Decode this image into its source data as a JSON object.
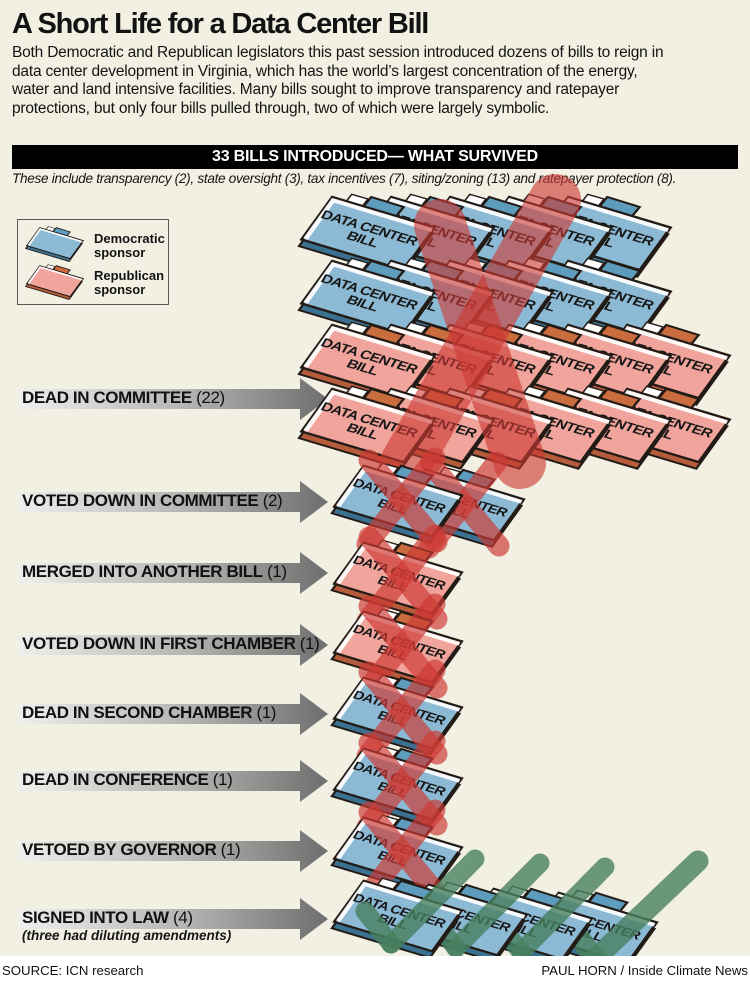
{
  "title": "A Short Life for a Data Center Bill",
  "intro": "Both Democratic and Republican legislators this past session introduced dozens of bills to reign in data center development in Virginia, which has the world’s largest concentration of the energy, water and land intensive facilities. Many bills sought to improve transparency and ratepayer protections, but only four bills pulled through, two of which were largely symbolic.",
  "banner": "33 BILLS INTRODUCED— WHAT SURVIVED",
  "subtitle": "These include transparency (2), state oversight (3), tax incentives (7), siting/zoning (13) and ratepayer protection (8).",
  "legend": {
    "dem_label": "Democratic sponsor",
    "rep_label": "Republican sponsor"
  },
  "folder": {
    "line1": "DATA CENTER",
    "line2": "BILL",
    "full_label": "DATA CENTER BILL"
  },
  "categories": [
    {
      "id": "dead_in_committee",
      "label": "DEAD IN COMMITTEE",
      "count": 22,
      "outcome": "x",
      "rows": [
        {
          "party": "dem",
          "n": 5
        },
        {
          "party": "dem",
          "n": 5
        },
        {
          "party": "rep",
          "n": 6
        },
        {
          "party": "rep",
          "n": 6
        }
      ]
    },
    {
      "id": "voted_down_in_committee",
      "label": "VOTED DOWN IN COMMITTEE",
      "count": 2,
      "outcome": "x",
      "rows": [
        {
          "party": "dem",
          "n": 2
        }
      ]
    },
    {
      "id": "merged_into_another_bill",
      "label": "MERGED INTO ANOTHER BILL",
      "count": 1,
      "outcome": "x",
      "rows": [
        {
          "party": "rep",
          "n": 1
        }
      ]
    },
    {
      "id": "voted_down_in_first_chamber",
      "label": "VOTED DOWN IN FIRST CHAMBER",
      "count": 1,
      "outcome": "x",
      "rows": [
        {
          "party": "rep",
          "n": 1
        }
      ]
    },
    {
      "id": "dead_in_second_chamber",
      "label": "DEAD IN SECOND CHAMBER",
      "count": 1,
      "outcome": "x",
      "rows": [
        {
          "party": "dem",
          "n": 1
        }
      ]
    },
    {
      "id": "dead_in_conference",
      "label": "DEAD IN CONFERENCE",
      "count": 1,
      "outcome": "x",
      "rows": [
        {
          "party": "dem",
          "n": 1
        }
      ]
    },
    {
      "id": "vetoed_by_governor",
      "label": "VETOED BY GOVERNOR",
      "count": 1,
      "outcome": "x",
      "rows": [
        {
          "party": "dem",
          "n": 1
        }
      ]
    },
    {
      "id": "signed_into_law",
      "label": "SIGNED INTO LAW",
      "count": 4,
      "note": "(three had diluting amendments)",
      "outcome": "check",
      "rows": [
        {
          "party": "dem",
          "n": 4
        }
      ]
    }
  ],
  "colors": {
    "background": "#f2efe3",
    "banner_bg": "#000000",
    "banner_text": "#ffffff",
    "dem": {
      "face": "#8cbad5",
      "side": "#3a7190",
      "tab": "#5e9cbe"
    },
    "rep": {
      "face": "#f0a49b",
      "side": "#b65c3c",
      "tab": "#c96c3e"
    },
    "x_mark": "#cd3a33",
    "check_mark": "#477f5e",
    "arrow_light": "#ececea",
    "arrow_dark": "#6e6e6e"
  },
  "footer": {
    "source": "SOURCE: ICN research",
    "credit": "PAUL HORN / Inside Climate News"
  },
  "chart_data": {
    "type": "bar",
    "style": "pictogram-folders-flow",
    "title": "33 BILLS INTRODUCED— WHAT SURVIVED",
    "subtitle": "These include transparency (2), state oversight (3), tax incentives (7), siting/zoning (13) and ratepayer protection (8).",
    "categories": [
      "DEAD IN COMMITTEE",
      "VOTED DOWN IN COMMITTEE",
      "MERGED INTO ANOTHER BILL",
      "VOTED DOWN IN FIRST CHAMBER",
      "DEAD IN SECOND CHAMBER",
      "DEAD IN CONFERENCE",
      "VETOED BY GOVERNOR",
      "SIGNED INTO LAW"
    ],
    "values": [
      22,
      2,
      1,
      1,
      1,
      1,
      1,
      4
    ],
    "series": [
      {
        "name": "Democratic sponsor",
        "values": [
          10,
          2,
          0,
          0,
          1,
          1,
          1,
          4
        ]
      },
      {
        "name": "Republican sponsor",
        "values": [
          12,
          0,
          1,
          1,
          0,
          0,
          0,
          0
        ]
      }
    ],
    "total": 33,
    "legend_position": "top-left",
    "bill_topics": {
      "transparency": 2,
      "state oversight": 3,
      "tax incentives": 7,
      "siting/zoning": 13,
      "ratepayer protection": 8
    }
  }
}
